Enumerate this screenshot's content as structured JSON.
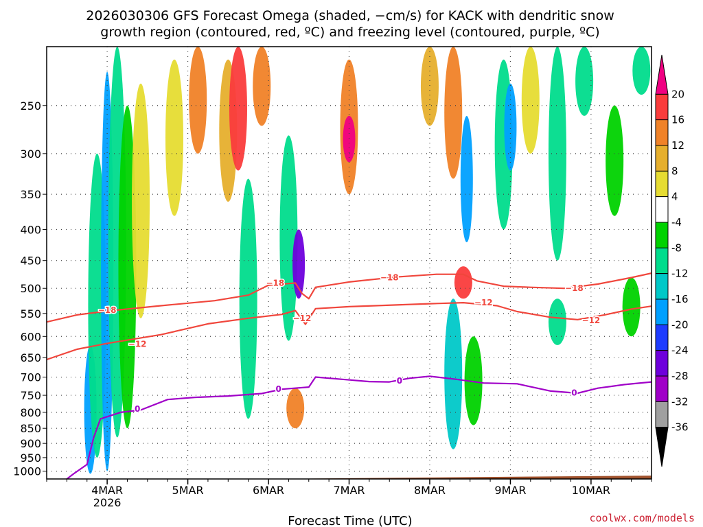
{
  "chart_data": {
    "type": "heatmap",
    "title_line1": "2026030306 GFS Forecast Omega (shaded, −cm/s) for KACK with dendritic snow",
    "title_line2": "growth region (contoured, red, ºC) and freezing level (contoured, purple, ºC)",
    "xlabel": "Forecast Time (UTC)",
    "credit": "coolwx.com/models",
    "x_ticks": [
      {
        "label": "4MAR",
        "sub": "2026",
        "hour": 24
      },
      {
        "label": "5MAR",
        "sub": "",
        "hour": 48
      },
      {
        "label": "6MAR",
        "sub": "",
        "hour": 72
      },
      {
        "label": "7MAR",
        "sub": "",
        "hour": 96
      },
      {
        "label": "8MAR",
        "sub": "",
        "hour": 120
      },
      {
        "label": "9MAR",
        "sub": "",
        "hour": 144
      },
      {
        "label": "10MAR",
        "sub": "",
        "hour": 168
      }
    ],
    "x_range_hours": [
      6,
      186
    ],
    "y_ticks": [
      250,
      300,
      350,
      400,
      450,
      500,
      550,
      600,
      650,
      700,
      750,
      800,
      850,
      900,
      950,
      1000
    ],
    "y_range_hpa": [
      200,
      1030
    ],
    "colorbar": {
      "levels": [
        -36,
        -32,
        -28,
        -24,
        -20,
        -16,
        -12,
        -8,
        -4,
        4,
        8,
        12,
        16,
        20
      ],
      "colors": [
        "#000000",
        "#a0a0a0",
        "#a000c8",
        "#6e00dc",
        "#1e3cff",
        "#00a0ff",
        "#00c8c8",
        "#00dc8c",
        "#00d200",
        "#ffffff",
        "#e6dc32",
        "#e6af2d",
        "#f08228",
        "#fa3c3c",
        "#f00082"
      ]
    },
    "omega_features": [
      {
        "hour": 19,
        "p_top": 620,
        "p_bot": 1010,
        "value": -20
      },
      {
        "hour": 21,
        "p_top": 300,
        "p_bot": 950,
        "value": -12
      },
      {
        "hour": 24,
        "p_top": 220,
        "p_bot": 1000,
        "value": -20
      },
      {
        "hour": 27,
        "p_top": 200,
        "p_bot": 880,
        "value": -12
      },
      {
        "hour": 30,
        "p_top": 250,
        "p_bot": 850,
        "value": -8
      },
      {
        "hour": 34,
        "p_top": 230,
        "p_bot": 560,
        "value": 6
      },
      {
        "hour": 44,
        "p_top": 210,
        "p_bot": 380,
        "value": 6
      },
      {
        "hour": 51,
        "p_top": 200,
        "p_bot": 300,
        "value": 14
      },
      {
        "hour": 60,
        "p_top": 210,
        "p_bot": 360,
        "value": 8
      },
      {
        "hour": 63,
        "p_top": 200,
        "p_bot": 320,
        "value": 16
      },
      {
        "hour": 66,
        "p_top": 330,
        "p_bot": 820,
        "value": -12
      },
      {
        "hour": 70,
        "p_top": 200,
        "p_bot": 270,
        "value": 12
      },
      {
        "hour": 78,
        "p_top": 280,
        "p_bot": 610,
        "value": -12
      },
      {
        "hour": 81,
        "p_top": 400,
        "p_bot": 520,
        "value": -28
      },
      {
        "hour": 80,
        "p_top": 730,
        "p_bot": 850,
        "value": 12
      },
      {
        "hour": 96,
        "p_top": 210,
        "p_bot": 350,
        "value": 12
      },
      {
        "hour": 96,
        "p_top": 260,
        "p_bot": 310,
        "value": 20
      },
      {
        "hour": 120,
        "p_top": 200,
        "p_bot": 270,
        "value": 8
      },
      {
        "hour": 127,
        "p_top": 200,
        "p_bot": 330,
        "value": 14
      },
      {
        "hour": 130,
        "p_top": 460,
        "p_bot": 520,
        "value": 16
      },
      {
        "hour": 127,
        "p_top": 520,
        "p_bot": 920,
        "value": -16
      },
      {
        "hour": 131,
        "p_top": 260,
        "p_bot": 420,
        "value": -20
      },
      {
        "hour": 133,
        "p_top": 600,
        "p_bot": 840,
        "value": -8
      },
      {
        "hour": 142,
        "p_top": 210,
        "p_bot": 400,
        "value": -12
      },
      {
        "hour": 144,
        "p_top": 230,
        "p_bot": 320,
        "value": -20
      },
      {
        "hour": 150,
        "p_top": 200,
        "p_bot": 300,
        "value": 6
      },
      {
        "hour": 158,
        "p_top": 200,
        "p_bot": 450,
        "value": -12
      },
      {
        "hour": 158,
        "p_top": 520,
        "p_bot": 620,
        "value": -10
      },
      {
        "hour": 166,
        "p_top": 200,
        "p_bot": 260,
        "value": -12
      },
      {
        "hour": 175,
        "p_top": 250,
        "p_bot": 380,
        "value": -8
      },
      {
        "hour": 180,
        "p_top": 480,
        "p_bot": 600,
        "value": -8
      },
      {
        "hour": 183,
        "p_top": 200,
        "p_bot": 240,
        "value": -12
      }
    ],
    "contours": [
      {
        "name": "isotherm-minus18",
        "label": "−18",
        "color": "#f0463c",
        "label_positions": [
          {
            "hour": 24,
            "p": 543
          },
          {
            "hour": 74,
            "p": 490
          },
          {
            "hour": 108,
            "p": 480
          },
          {
            "hour": 163,
            "p": 500
          }
        ],
        "points": [
          [
            6,
            568
          ],
          [
            15,
            553
          ],
          [
            24,
            545
          ],
          [
            40,
            534
          ],
          [
            56,
            524
          ],
          [
            66,
            513
          ],
          [
            72,
            494
          ],
          [
            80,
            490
          ],
          [
            82,
            510
          ],
          [
            84,
            520
          ],
          [
            86,
            498
          ],
          [
            96,
            488
          ],
          [
            110,
            479
          ],
          [
            122,
            474
          ],
          [
            130,
            474
          ],
          [
            134,
            486
          ],
          [
            142,
            496
          ],
          [
            150,
            498
          ],
          [
            160,
            500
          ],
          [
            170,
            492
          ],
          [
            180,
            480
          ],
          [
            186,
            472
          ]
        ]
      },
      {
        "name": "isotherm-minus12",
        "label": "−12",
        "color": "#f0463c",
        "label_positions": [
          {
            "hour": 33,
            "p": 618
          },
          {
            "hour": 82,
            "p": 560
          },
          {
            "hour": 136,
            "p": 528
          },
          {
            "hour": 168,
            "p": 565
          }
        ],
        "points": [
          [
            6,
            655
          ],
          [
            15,
            630
          ],
          [
            24,
            616
          ],
          [
            40,
            596
          ],
          [
            54,
            572
          ],
          [
            66,
            560
          ],
          [
            76,
            552
          ],
          [
            80,
            544
          ],
          [
            83,
            573
          ],
          [
            86,
            540
          ],
          [
            96,
            536
          ],
          [
            120,
            530
          ],
          [
            130,
            528
          ],
          [
            140,
            534
          ],
          [
            146,
            546
          ],
          [
            156,
            558
          ],
          [
            164,
            563
          ],
          [
            172,
            553
          ],
          [
            180,
            541
          ],
          [
            186,
            535
          ]
        ]
      },
      {
        "name": "freezing-level-0",
        "label": "0",
        "color": "#a000c8",
        "label_positions": [
          {
            "hour": 33,
            "p": 790
          },
          {
            "hour": 75,
            "p": 733
          },
          {
            "hour": 111,
            "p": 710
          },
          {
            "hour": 163,
            "p": 743
          }
        ],
        "points": [
          [
            12,
            1030
          ],
          [
            14,
            1010
          ],
          [
            18,
            975
          ],
          [
            20,
            880
          ],
          [
            22,
            820
          ],
          [
            28,
            800
          ],
          [
            34,
            793
          ],
          [
            42,
            762
          ],
          [
            50,
            756
          ],
          [
            60,
            752
          ],
          [
            70,
            745
          ],
          [
            76,
            733
          ],
          [
            84,
            727
          ],
          [
            86,
            700
          ],
          [
            94,
            706
          ],
          [
            102,
            712
          ],
          [
            108,
            713
          ],
          [
            114,
            703
          ],
          [
            120,
            698
          ],
          [
            128,
            706
          ],
          [
            136,
            716
          ],
          [
            146,
            718
          ],
          [
            156,
            738
          ],
          [
            164,
            744
          ],
          [
            170,
            730
          ],
          [
            178,
            720
          ],
          [
            186,
            713
          ]
        ]
      }
    ],
    "sfc_pressure_hpa": 1025
  }
}
